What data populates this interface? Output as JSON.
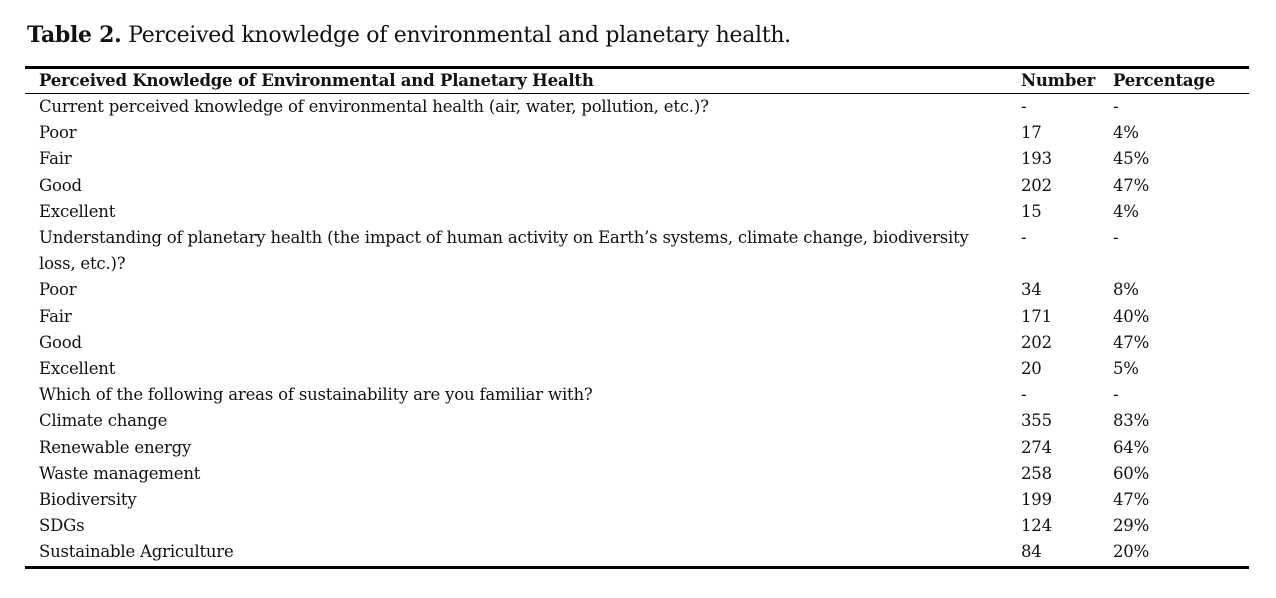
{
  "caption": {
    "label": "Table 2.",
    "text": "Perceived knowledge of environmental and planetary health."
  },
  "table": {
    "headers": [
      "Perceived Knowledge of Environmental and Planetary Health",
      "Number",
      "Percentage"
    ],
    "rows": [
      [
        "Current perceived knowledge of environmental health (air, water, pollution, etc.)?",
        "-",
        "-"
      ],
      [
        "Poor",
        "17",
        "4%"
      ],
      [
        "Fair",
        "193",
        "45%"
      ],
      [
        "Good",
        "202",
        "47%"
      ],
      [
        "Excellent",
        "15",
        "4%"
      ],
      [
        "Understanding of planetary health (the impact of human activity on Earth’s systems, climate change, biodiversity loss, etc.)?",
        "-",
        "-"
      ],
      [
        "Poor",
        "34",
        "8%"
      ],
      [
        "Fair",
        "171",
        "40%"
      ],
      [
        "Good",
        "202",
        "47%"
      ],
      [
        "Excellent",
        "20",
        "5%"
      ],
      [
        "Which of the following areas of sustainability are you familiar with?",
        "-",
        "-"
      ],
      [
        "Climate change",
        "355",
        "83%"
      ],
      [
        "Renewable energy",
        "274",
        "64%"
      ],
      [
        "Waste management",
        "258",
        "60%"
      ],
      [
        "Biodiversity",
        "199",
        "47%"
      ],
      [
        "SDGs",
        "124",
        "29%"
      ],
      [
        "Sustainable Agriculture",
        "84",
        "20%"
      ]
    ]
  }
}
